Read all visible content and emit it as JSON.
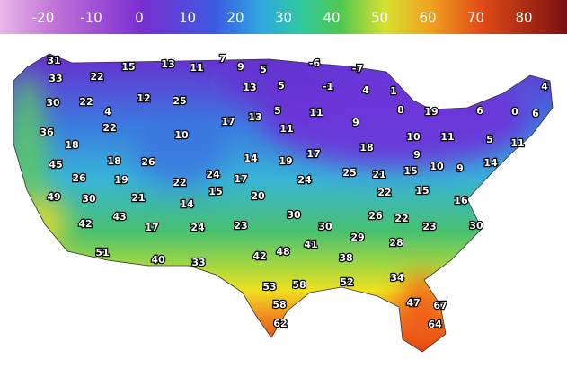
{
  "legend": {
    "ticks": [
      -20,
      -10,
      0,
      10,
      20,
      30,
      40,
      50,
      60,
      70,
      80
    ]
  },
  "labels": [
    31,
    15,
    13,
    11,
    7,
    9,
    5,
    -6,
    -7,
    33,
    22,
    13,
    5,
    -1,
    4,
    1,
    4,
    30,
    22,
    4,
    12,
    25,
    8,
    19,
    6,
    0,
    6,
    36,
    22,
    10,
    17,
    13,
    5,
    11,
    9,
    18,
    10,
    11,
    5,
    11,
    18,
    11,
    9,
    45,
    18,
    26,
    14,
    19,
    17,
    25,
    21,
    15,
    10,
    9,
    14,
    26,
    19,
    22,
    24,
    17,
    24,
    22,
    15,
    16,
    49,
    30,
    21,
    15,
    20,
    14,
    42,
    43,
    17,
    24,
    23,
    30,
    30,
    26,
    22,
    23,
    30,
    51,
    40,
    33,
    42,
    48,
    41,
    29,
    38,
    28,
    53,
    58,
    52,
    34,
    58,
    47,
    67,
    62,
    64
  ]
}
